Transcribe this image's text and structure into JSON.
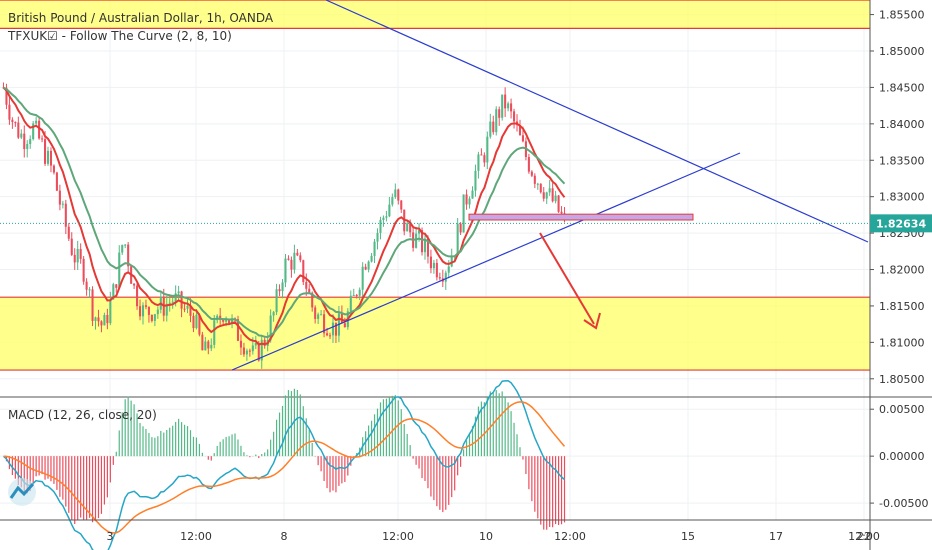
{
  "header": {
    "symbol_title": "British Pound / Australian Dollar, 1h, OANDA",
    "indicator_title": "TFXUK☑ - Follow The Curve (2, 8, 10)",
    "macd_title": "MACD (12, 26, close, 20)"
  },
  "colors": {
    "up": "#53b987",
    "down": "#eb4d5c",
    "zone_fill": "#ffff66",
    "zone_border": "#e53935",
    "trendline": "#2b3ccf",
    "fast_curve": "#e53935",
    "slow_curve": "#5fa77a",
    "macd_line": "#26a6c7",
    "signal_line": "#ff7f2a",
    "last_price_bg": "#26a69a"
  },
  "chart_data": {
    "type": "candlestick",
    "price_axis": {
      "ylim": [
        1.8025,
        1.857
      ],
      "ticks": [
        "1.80500",
        "1.81000",
        "1.81500",
        "1.82000",
        "1.82500",
        "1.83000",
        "1.83500",
        "1.84000",
        "1.84500",
        "1.85000",
        "1.85500"
      ],
      "last_price": "1.82634"
    },
    "macd_axis": {
      "ylim": [
        -0.0068,
        0.0063
      ],
      "ticks": [
        "0.00500",
        "0.00000",
        "-0.00500"
      ]
    },
    "time_axis": {
      "labels": [
        "3",
        "12:00",
        "8",
        "12:00",
        "10",
        "12:00",
        "15",
        "17",
        "12:00",
        "22"
      ]
    },
    "zones": [
      {
        "from": 1.8531,
        "to": 1.857
      },
      {
        "from": 1.8062,
        "to": 1.8162
      }
    ],
    "levels": [
      {
        "name": "resistance-box",
        "from": 1.8268,
        "to": 1.8276
      }
    ],
    "close_path": [
      1.845,
      1.84,
      1.838,
      1.8395,
      1.8365,
      1.833,
      1.827,
      1.822,
      1.82,
      1.814,
      1.812,
      1.817,
      1.8245,
      1.8175,
      1.814,
      1.8145,
      1.815,
      1.816,
      1.8145,
      1.8135,
      1.808,
      1.8115,
      1.8145,
      1.812,
      1.81,
      1.808,
      1.81,
      1.814,
      1.8205,
      1.8215,
      1.819,
      1.814,
      1.813,
      1.812,
      1.8125,
      1.816,
      1.821,
      1.824,
      1.8275,
      1.8305,
      1.826,
      1.8245,
      1.823,
      1.8205,
      1.82,
      1.823,
      1.829,
      1.833,
      1.836,
      1.8405,
      1.843,
      1.84,
      1.836,
      1.833,
      1.831,
      1.829,
      1.8265
    ]
  }
}
